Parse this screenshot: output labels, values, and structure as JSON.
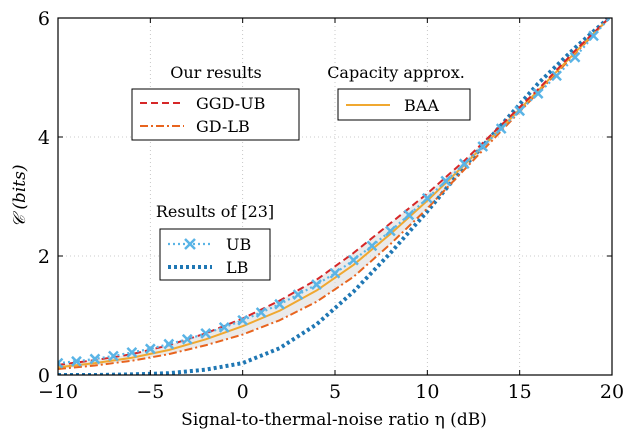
{
  "chart_data": {
    "type": "line",
    "xlabel": "Signal-to-thermal-noise ratio η (dB)",
    "ylabel": "𝒞 (bits)",
    "xlim": [
      -10,
      20
    ],
    "ylim": [
      0,
      6
    ],
    "xticks": [
      -10,
      -5,
      0,
      5,
      10,
      15,
      20
    ],
    "xtick_labels": [
      "−10",
      "−5",
      "0",
      "5",
      "10",
      "15",
      "20"
    ],
    "yticks": [
      0,
      2,
      4,
      6
    ],
    "ytick_labels": [
      "0",
      "2",
      "4",
      "6"
    ],
    "grid": "dotted",
    "series": [
      {
        "name": "GGD-UB",
        "color": "#d62728",
        "style": "dashed",
        "x": [
          -10,
          -8,
          -6,
          -4,
          -2,
          0,
          2,
          4,
          6,
          8,
          10,
          12,
          14,
          16,
          18,
          20
        ],
        "y": [
          0.17,
          0.25,
          0.35,
          0.5,
          0.7,
          0.95,
          1.25,
          1.6,
          2.05,
          2.55,
          3.05,
          3.6,
          4.2,
          4.8,
          5.45,
          6.05
        ]
      },
      {
        "name": "GD-LB",
        "color": "#e8641e",
        "style": "dashdot",
        "x": [
          -10,
          -8,
          -6,
          -4,
          -2,
          0,
          2,
          4,
          6,
          8,
          10,
          12,
          14,
          16,
          18,
          20
        ],
        "y": [
          0.1,
          0.16,
          0.24,
          0.35,
          0.5,
          0.68,
          0.92,
          1.23,
          1.65,
          2.2,
          2.8,
          3.45,
          4.1,
          4.75,
          5.4,
          6.05
        ]
      },
      {
        "name": "BAA",
        "color": "#f0a830",
        "style": "solid",
        "x": [
          -10,
          -8,
          -6,
          -4,
          -2,
          0,
          2,
          4,
          6,
          8,
          10,
          12,
          14,
          16,
          18,
          20
        ],
        "y": [
          0.13,
          0.2,
          0.29,
          0.42,
          0.6,
          0.82,
          1.08,
          1.42,
          1.85,
          2.37,
          2.93,
          3.53,
          4.15,
          4.78,
          5.42,
          6.05
        ]
      },
      {
        "name": "UB",
        "color": "#5ab4e6",
        "style": "dotted-marker",
        "x": [
          -10,
          -9,
          -8,
          -7,
          -6,
          -5,
          -4,
          -3,
          -2,
          -1,
          0,
          1,
          2,
          3,
          4,
          5,
          6,
          7,
          8,
          9,
          10,
          11,
          12,
          13,
          14,
          15,
          16,
          17,
          18,
          19,
          20
        ],
        "y": [
          0.2,
          0.23,
          0.27,
          0.32,
          0.38,
          0.44,
          0.52,
          0.6,
          0.7,
          0.8,
          0.92,
          1.05,
          1.19,
          1.35,
          1.52,
          1.71,
          1.93,
          2.17,
          2.42,
          2.69,
          2.97,
          3.26,
          3.55,
          3.84,
          4.14,
          4.44,
          4.73,
          5.03,
          5.34,
          5.7,
          6.05
        ]
      },
      {
        "name": "LB",
        "color": "#1f77b4",
        "style": "dotted-thick",
        "x": [
          -10,
          -8,
          -6,
          -4,
          -2,
          0,
          2,
          4,
          6,
          8,
          10,
          12,
          14,
          16,
          18,
          20
        ],
        "y": [
          0.0,
          0.0,
          0.01,
          0.03,
          0.09,
          0.2,
          0.45,
          0.85,
          1.4,
          2.05,
          2.75,
          3.5,
          4.2,
          4.9,
          5.5,
          6.05
        ]
      }
    ],
    "legends": [
      {
        "title": "Our results",
        "entries": [
          "GGD-UB",
          "GD-LB"
        ]
      },
      {
        "title": "Capacity approx.",
        "entries": [
          "BAA"
        ]
      },
      {
        "title": "Results of [23]",
        "entries": [
          "UB",
          "LB"
        ]
      }
    ]
  }
}
